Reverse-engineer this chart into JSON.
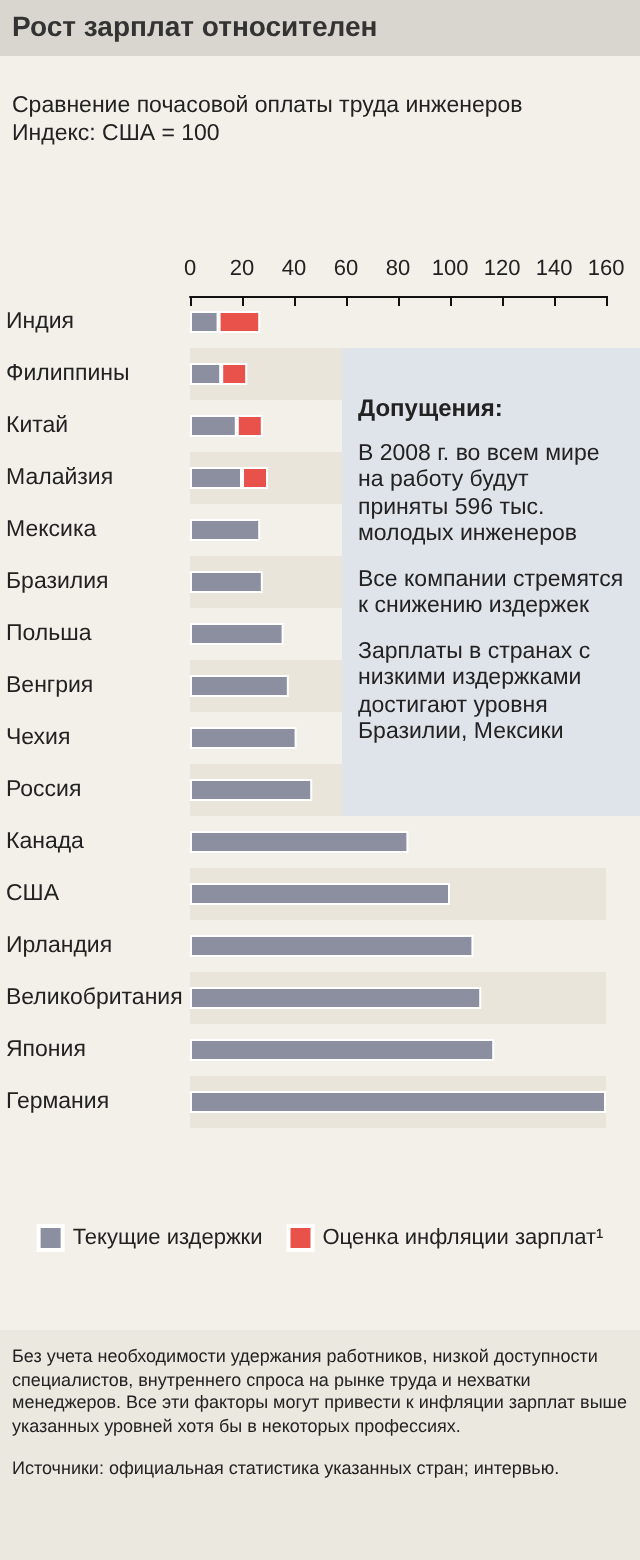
{
  "chart_data": {
    "type": "bar",
    "orientation": "horizontal",
    "stacked": true,
    "title": "Рост зарплат относителен",
    "subtitle": "Сравнение почасовой оплаты труда инженеров\nИндекс: США = 100",
    "categories": [
      "Индия",
      "Филиппины",
      "Китай",
      "Малайзия",
      "Мексика",
      "Бразилия",
      "Польша",
      "Венгрия",
      "Чехия",
      "Россия",
      "Канада",
      "США",
      "Ирландия",
      "Великобритания",
      "Япония",
      "Германия"
    ],
    "series": [
      {
        "name": "Текущие издержки",
        "color": "#8b8fa0",
        "values": [
          11,
          12,
          18,
          20,
          27,
          28,
          36,
          38,
          41,
          47,
          84,
          100,
          109,
          112,
          117,
          160
        ]
      },
      {
        "name": "Оценка инфляции зарплат¹",
        "color": "#e8524a",
        "values": [
          16,
          10,
          10,
          10,
          null,
          null,
          null,
          null,
          null,
          null,
          null,
          null,
          null,
          null,
          null,
          null
        ]
      }
    ],
    "xlim": [
      0,
      160
    ],
    "xticks": [
      0,
      20,
      40,
      60,
      80,
      100,
      120,
      140,
      160
    ],
    "grid": false,
    "legend": "bottom",
    "annotations": [
      "Допущения:",
      "В 2008 г. во всем мире на работу будут приняты 596 тыс. молодых инженеров",
      "Все компании стремятся к снижению издержек",
      "Зарплаты в странах с низкими издержками достигают уровня Бразилии, Мексики",
      "Без учета необходимости удержания работников, низкой доступности специалистов, внутреннего спроса на рынке труда и нехватки менеджеров. Все эти факторы могут привести к инфляции зарплат выше указанных уровней хотя бы в некоторых профессиях.",
      "Источники: официальная статистика указанных стран; интервью."
    ]
  }
}
